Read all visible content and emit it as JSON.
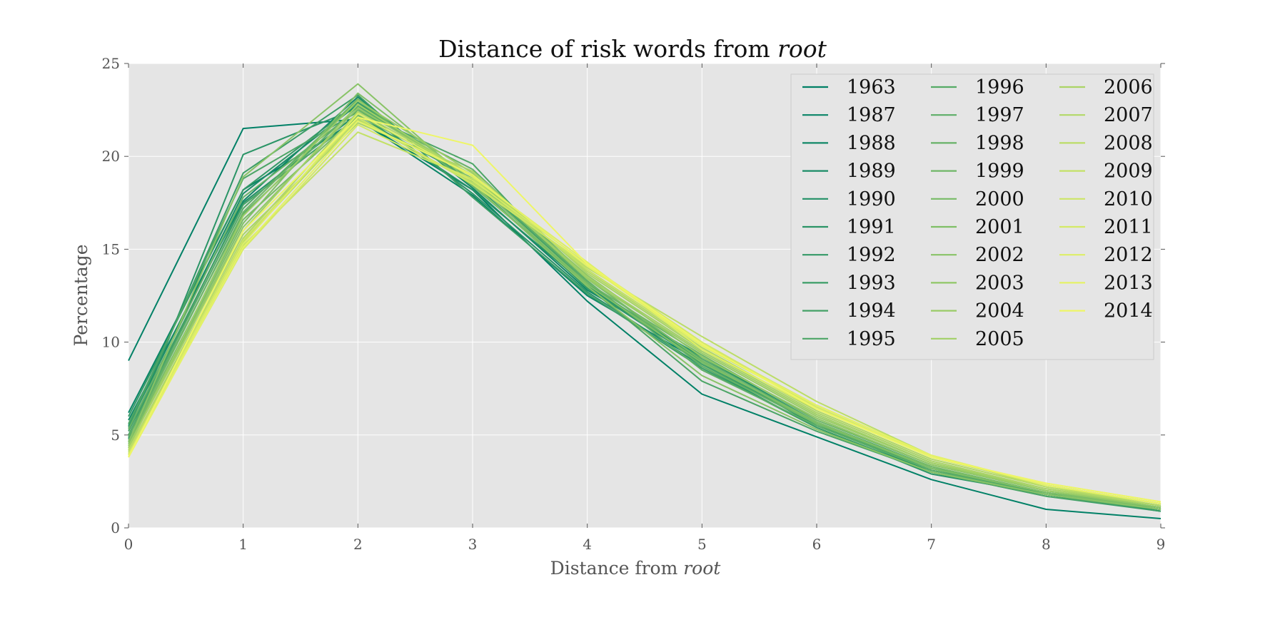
{
  "chart_data": {
    "type": "line",
    "title": "Distance of risk words from ",
    "title_italic": "root",
    "xlabel": "Distance from ",
    "xlabel_italic": "root",
    "ylabel": "Percentage",
    "xlim": [
      0,
      9
    ],
    "ylim": [
      0,
      25
    ],
    "xticks": [
      "0",
      "1",
      "2",
      "3",
      "4",
      "5",
      "6",
      "7",
      "8",
      "9"
    ],
    "yticks": [
      "0",
      "5",
      "10",
      "15",
      "20",
      "25"
    ],
    "grid": true,
    "legend_placement": "top-right",
    "legend_columns": 3,
    "background": "#e5e5e5",
    "colormap": "summer (green to yellow)",
    "x": [
      0,
      1,
      2,
      3,
      4,
      5,
      6,
      7,
      8,
      9
    ],
    "series": [
      {
        "name": "1963",
        "color": "#008066",
        "values": [
          9.0,
          21.5,
          22.0,
          18.2,
          12.2,
          7.2,
          4.9,
          2.6,
          1.0,
          0.5
        ]
      },
      {
        "name": "1987",
        "color": "#088466",
        "values": [
          6.2,
          18.2,
          22.0,
          17.9,
          12.5,
          8.9,
          5.6,
          3.0,
          1.8,
          0.9
        ]
      },
      {
        "name": "1988",
        "color": "#118866",
        "values": [
          5.8,
          17.6,
          23.2,
          18.3,
          12.8,
          9.2,
          5.7,
          3.2,
          1.9,
          0.9
        ]
      },
      {
        "name": "1989",
        "color": "#198c66",
        "values": [
          5.5,
          18.0,
          22.8,
          18.6,
          12.9,
          8.9,
          5.5,
          3.1,
          1.8,
          1.0
        ]
      },
      {
        "name": "1990",
        "color": "#229066",
        "values": [
          5.0,
          17.5,
          22.3,
          18.2,
          13.0,
          9.0,
          5.6,
          3.3,
          1.8,
          1.0
        ]
      },
      {
        "name": "1991",
        "color": "#2a9466",
        "values": [
          4.8,
          20.1,
          22.6,
          18.0,
          12.7,
          8.7,
          5.4,
          2.9,
          1.8,
          1.0
        ]
      },
      {
        "name": "1992",
        "color": "#339966",
        "values": [
          6.0,
          18.2,
          22.9,
          18.6,
          12.9,
          9.0,
          5.6,
          3.1,
          1.9,
          1.0
        ]
      },
      {
        "name": "1993",
        "color": "#3b9d66",
        "values": [
          5.4,
          19.1,
          23.3,
          17.8,
          12.6,
          8.6,
          5.4,
          3.0,
          1.7,
          0.9
        ]
      },
      {
        "name": "1994",
        "color": "#44a166",
        "values": [
          5.2,
          17.4,
          22.1,
          18.8,
          13.2,
          8.8,
          5.6,
          3.2,
          1.8,
          1.1
        ]
      },
      {
        "name": "1995",
        "color": "#4ca566",
        "values": [
          5.6,
          18.8,
          22.4,
          19.6,
          13.0,
          7.9,
          5.2,
          3.0,
          1.7,
          1.0
        ]
      },
      {
        "name": "1996",
        "color": "#55aa66",
        "values": [
          5.0,
          17.2,
          23.0,
          18.5,
          13.1,
          9.1,
          5.7,
          3.3,
          1.9,
          1.1
        ]
      },
      {
        "name": "1997",
        "color": "#5dae66",
        "values": [
          4.9,
          16.9,
          22.7,
          18.9,
          13.3,
          8.5,
          5.5,
          3.1,
          1.8,
          1.0
        ]
      },
      {
        "name": "1998",
        "color": "#66b266",
        "values": [
          5.3,
          17.8,
          22.5,
          19.3,
          13.5,
          8.7,
          5.6,
          3.2,
          1.9,
          1.1
        ]
      },
      {
        "name": "1999",
        "color": "#6eb666",
        "values": [
          4.7,
          17.0,
          23.1,
          18.4,
          13.2,
          9.3,
          5.8,
          3.4,
          2.0,
          1.1
        ]
      },
      {
        "name": "2000",
        "color": "#77bb66",
        "values": [
          4.6,
          16.6,
          22.2,
          19.0,
          13.4,
          9.0,
          5.6,
          3.3,
          1.9,
          1.1
        ]
      },
      {
        "name": "2001",
        "color": "#7fbf66",
        "values": [
          4.5,
          16.4,
          23.4,
          18.7,
          13.1,
          8.9,
          5.7,
          3.2,
          1.9,
          1.0
        ]
      },
      {
        "name": "2002",
        "color": "#88c366",
        "values": [
          4.6,
          18.9,
          23.9,
          18.5,
          13.0,
          8.2,
          5.3,
          3.0,
          1.8,
          1.0
        ]
      },
      {
        "name": "2003",
        "color": "#90c766",
        "values": [
          4.4,
          16.2,
          22.6,
          18.9,
          13.6,
          9.2,
          5.9,
          3.4,
          2.0,
          1.1
        ]
      },
      {
        "name": "2004",
        "color": "#99cc66",
        "values": [
          4.3,
          16.8,
          23.0,
          19.1,
          13.4,
          9.4,
          6.0,
          3.5,
          2.0,
          1.2
        ]
      },
      {
        "name": "2005",
        "color": "#a1d066",
        "values": [
          4.4,
          16.0,
          22.8,
          18.9,
          13.5,
          9.5,
          6.1,
          3.5,
          2.1,
          1.2
        ]
      },
      {
        "name": "2006",
        "color": "#aad466",
        "values": [
          4.2,
          15.8,
          21.8,
          19.2,
          13.7,
          9.6,
          6.2,
          3.6,
          2.1,
          1.2
        ]
      },
      {
        "name": "2007",
        "color": "#b2d866",
        "values": [
          4.1,
          15.6,
          22.4,
          19.0,
          13.8,
          9.7,
          6.3,
          3.7,
          2.2,
          1.2
        ]
      },
      {
        "name": "2008",
        "color": "#bbdd66",
        "values": [
          4.2,
          15.4,
          22.0,
          18.6,
          14.0,
          10.3,
          6.8,
          3.9,
          2.2,
          1.3
        ]
      },
      {
        "name": "2009",
        "color": "#c3e166",
        "values": [
          4.0,
          15.2,
          21.3,
          18.8,
          13.9,
          9.8,
          6.5,
          3.8,
          2.3,
          1.3
        ]
      },
      {
        "name": "2010",
        "color": "#cce566",
        "values": [
          4.0,
          15.5,
          22.1,
          18.5,
          14.1,
          9.9,
          6.6,
          3.9,
          2.3,
          1.3
        ]
      },
      {
        "name": "2011",
        "color": "#d4e966",
        "values": [
          3.9,
          15.0,
          21.7,
          18.7,
          14.2,
          10.0,
          6.5,
          3.8,
          2.4,
          1.4
        ]
      },
      {
        "name": "2012",
        "color": "#ddee66",
        "values": [
          3.9,
          15.3,
          22.3,
          18.9,
          14.3,
          9.6,
          6.4,
          3.9,
          2.3,
          1.3
        ]
      },
      {
        "name": "2013",
        "color": "#e5f266",
        "values": [
          3.8,
          15.1,
          21.9,
          19.0,
          14.1,
          9.8,
          6.6,
          3.9,
          2.3,
          1.3
        ]
      },
      {
        "name": "2014",
        "color": "#eef666",
        "values": [
          3.8,
          16.0,
          22.1,
          20.6,
          14.2,
          9.9,
          6.4,
          3.8,
          2.4,
          1.4
        ]
      }
    ]
  }
}
